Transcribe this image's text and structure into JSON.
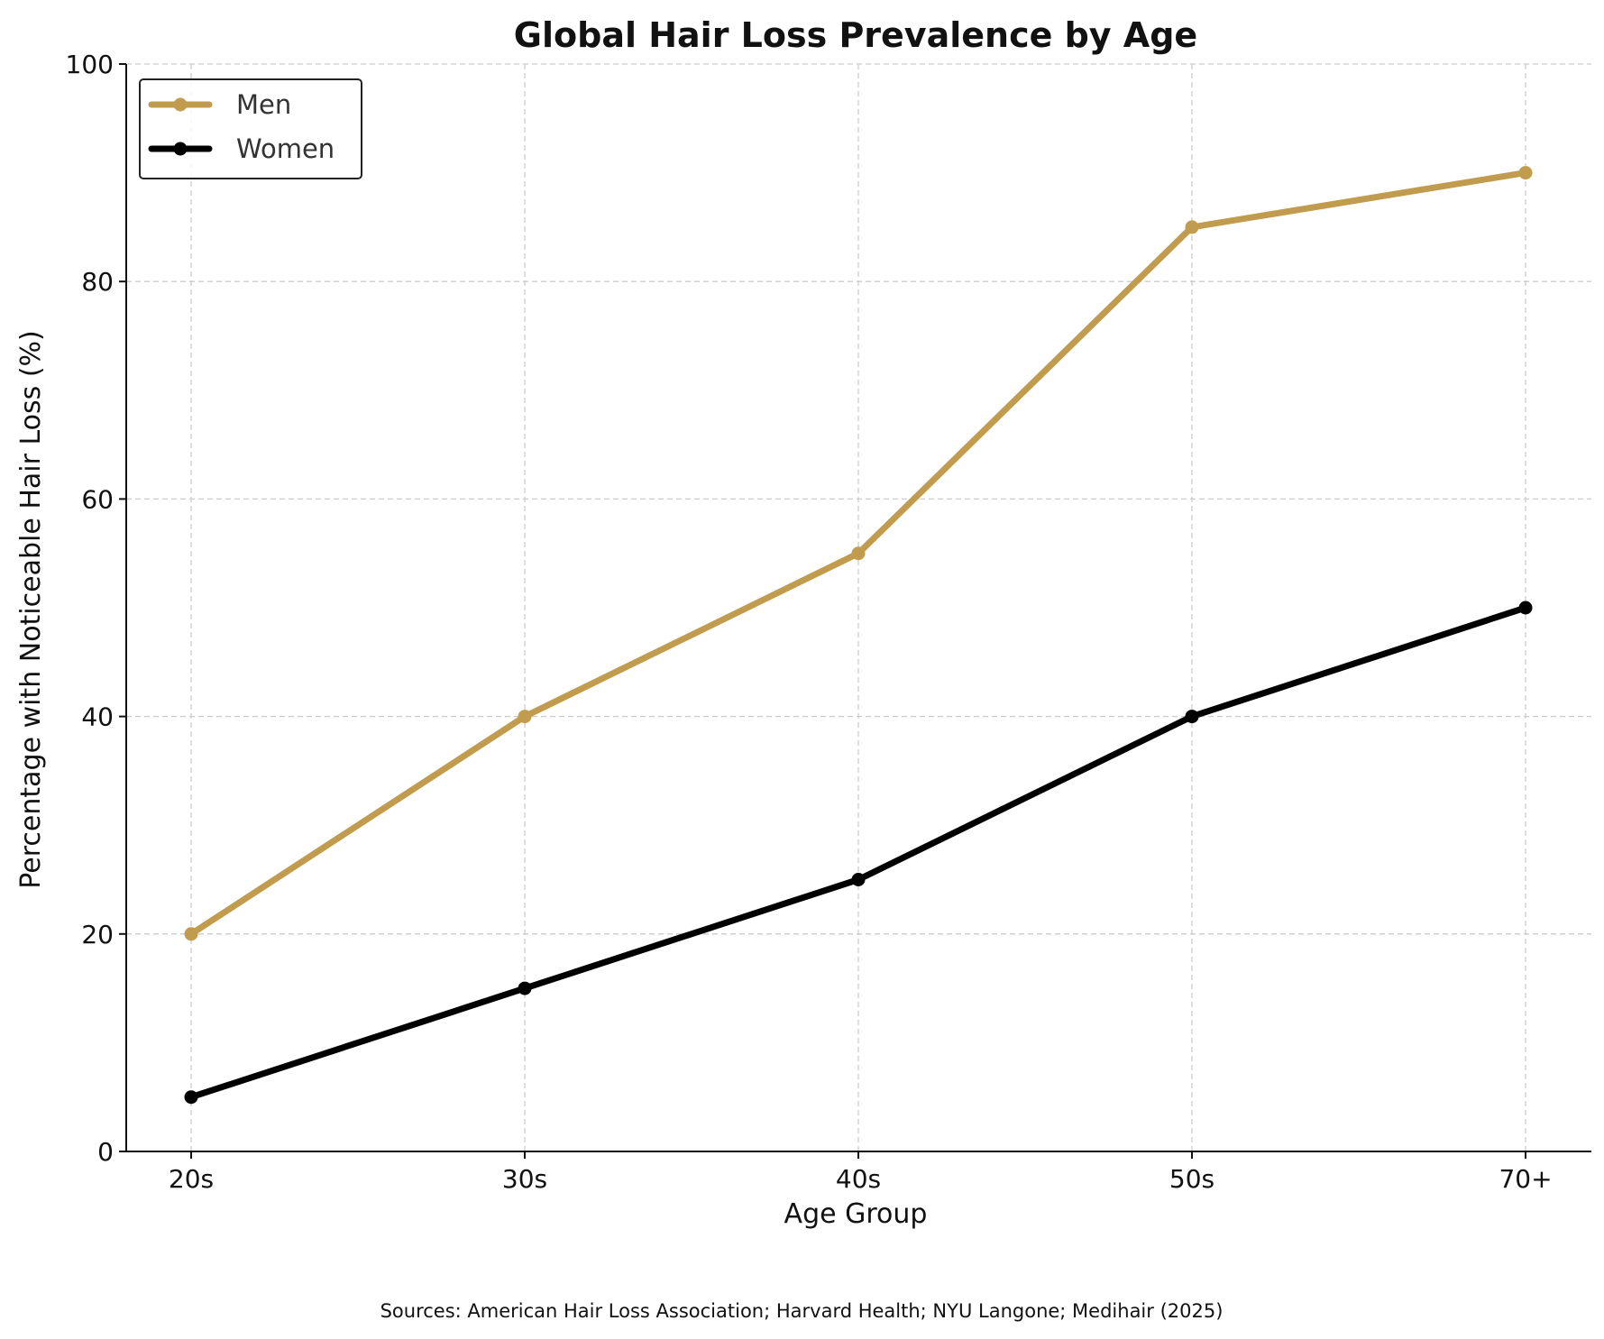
{
  "chart_data": {
    "type": "line",
    "title": "Global Hair Loss Prevalence by Age",
    "xlabel": "Age Group",
    "ylabel": "Percentage with Noticeable Hair Loss (%)",
    "categories": [
      "20s",
      "30s",
      "40s",
      "50s",
      "70+"
    ],
    "ylim": [
      0,
      100
    ],
    "yticks": [
      0,
      20,
      40,
      60,
      80,
      100
    ],
    "grid": true,
    "legend_position": "top-left",
    "series": [
      {
        "name": "Men",
        "color": "#c29c4e",
        "values": [
          20,
          40,
          55,
          85,
          90
        ]
      },
      {
        "name": "Women",
        "color": "#000000",
        "values": [
          5,
          15,
          25,
          40,
          50
        ]
      }
    ],
    "source": "Sources: American Hair Loss Association; Harvard Health; NYU Langone; Medihair (2025)"
  }
}
